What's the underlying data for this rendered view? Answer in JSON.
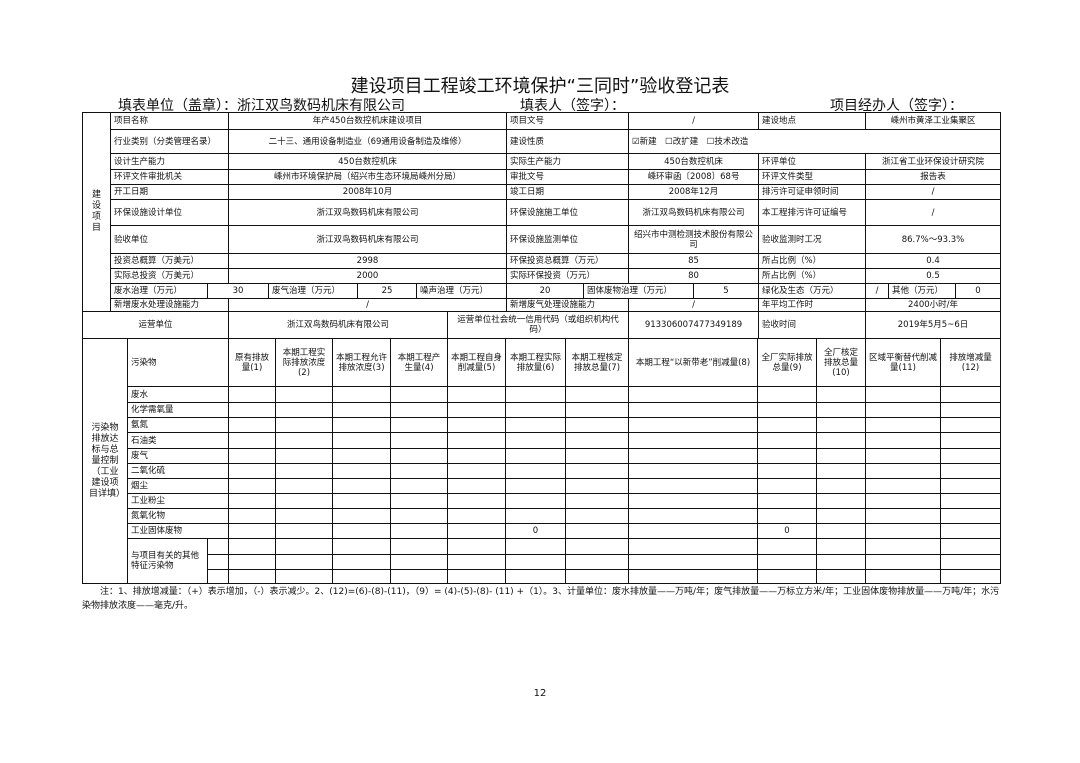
{
  "title": "建设项目工程竣工环境保护“三同时”验收登记表",
  "header": {
    "unit": "填表单位（盖章）：浙江双鸟数码机床有限公司",
    "filler": "填表人（签字）：",
    "manager": "项目经办人（签字）："
  },
  "project": {
    "section_label": "建设项目",
    "name_label": "项目名称",
    "name": "年产450台数控机床建设项目",
    "doc_no_label": "项目文号",
    "doc_no": "/",
    "location_label": "建设地点",
    "location": "嵊州市黄泽工业集聚区",
    "industry_label": "行业类别（分类管理名录）",
    "industry": "二十三、通用设备制造业（69通用设备制造及维修）",
    "nature_label": "建设性质",
    "nature": "☑新建　☐改扩建　☐技术改造",
    "design_capacity_label": "设计生产能力",
    "design_capacity": "450台数控机床",
    "actual_capacity_label": "实际生产能力",
    "actual_capacity": "450台数控机床",
    "eia_unit_label": "环评单位",
    "eia_unit": "浙江省工业环保设计研究院",
    "approval_authority_label": "环评文件审批机关",
    "approval_authority": "嵊州市环境保护局（绍兴市生态环境局嵊州分局）",
    "approval_no_label": "审批文号",
    "approval_no": "嵊环审函〔2008〕68号",
    "eia_doc_type_label": "环评文件类型",
    "eia_doc_type": "报告表",
    "start_date_label": "开工日期",
    "start_date": "2008年10月",
    "completion_date_label": "竣工日期",
    "completion_date": "2008年12月",
    "permit_time_label": "排污许可证申领时间",
    "permit_time": "/",
    "facility_design_label": "环保设施设计单位",
    "facility_design": "浙江双鸟数码机床有限公司",
    "facility_construction_label": "环保设施施工单位",
    "facility_construction": "浙江双鸟数码机床有限公司",
    "permit_no_label": "本工程排污许可证编号",
    "permit_no": "/",
    "acceptance_unit_label": "验收单位",
    "acceptance_unit": "浙江双鸟数码机床有限公司",
    "monitoring_unit_label": "环保设施监测单位",
    "monitoring_unit": "绍兴市中测检测技术股份有限公司",
    "monitoring_condition_label": "验收监测时工况",
    "monitoring_condition": "86.7%～93.3%",
    "invest_budget_label": "投资总概算（万美元）",
    "invest_budget": "2998",
    "env_invest_budget_label": "环保投资总概算（万元）",
    "env_invest_budget": "85",
    "ratio_label": "所占比例（%）",
    "ratio_budget": "0.4",
    "actual_invest_label": "实际总投资（万美元）",
    "actual_invest": "2000",
    "actual_env_invest_label": "实际环保投资（万元）",
    "actual_env_invest": "80",
    "ratio_actual": "0.5",
    "wastewater_label": "废水治理（万元）",
    "wastewater": "30",
    "waste_gas_label": "废气治理（万元）",
    "waste_gas": "25",
    "noise_label": "噪声治理（万元）",
    "noise": "20",
    "solid_label": "固体废物治理（万元）",
    "solid": "5",
    "greening_label": "绿化及生态（万元）",
    "greening": "/",
    "other_label": "其他（万元）",
    "other": "0",
    "new_ww_capacity_label": "新增废水处理设施能力",
    "new_ww_capacity": "/",
    "new_gas_capacity_label": "新增废气处理设施能力",
    "new_gas_capacity": "/",
    "annual_hours_label": "年平均工作时",
    "annual_hours": "2400小时/年"
  },
  "operator": {
    "label": "运营单位",
    "name": "浙江双鸟数码机床有限公司",
    "credit_code_label": "运营单位社会统一信用代码（或组织机构代码）",
    "credit_code": "913306007477349189",
    "acceptance_time_label": "验收时间",
    "acceptance_time": "2019年5月5~6日"
  },
  "pollutants": {
    "section_label": "污染物排放达标与总量控制（工业建设项目详填）",
    "header_label": "污染物",
    "columns": [
      "原有排放量(1)",
      "本期工程实际排放浓度(2)",
      "本期工程允许排放浓度(3)",
      "本期工程产生量(4)",
      "本期工程自身削减量(5)",
      "本期工程实际排放量(6)",
      "本期工程核定排放总量(7)",
      "本期工程“以新带老”削减量(8)",
      "全厂实际排放总量(9)",
      "全厂核定排放总量(10)",
      "区域平衡替代削减量(11)",
      "排放增减量(12)"
    ],
    "rows": [
      {
        "name": "废水",
        "values": [
          "",
          "",
          "",
          "",
          "",
          "",
          "",
          "",
          "",
          "",
          "",
          ""
        ]
      },
      {
        "name": "化学需氧量",
        "values": [
          "",
          "",
          "",
          "",
          "",
          "",
          "",
          "",
          "",
          "",
          "",
          ""
        ]
      },
      {
        "name": "氨氮",
        "values": [
          "",
          "",
          "",
          "",
          "",
          "",
          "",
          "",
          "",
          "",
          "",
          ""
        ]
      },
      {
        "name": "石油类",
        "values": [
          "",
          "",
          "",
          "",
          "",
          "",
          "",
          "",
          "",
          "",
          "",
          ""
        ]
      },
      {
        "name": "废气",
        "values": [
          "",
          "",
          "",
          "",
          "",
          "",
          "",
          "",
          "",
          "",
          "",
          ""
        ]
      },
      {
        "name": "二氧化硫",
        "values": [
          "",
          "",
          "",
          "",
          "",
          "",
          "",
          "",
          "",
          "",
          "",
          ""
        ]
      },
      {
        "name": "烟尘",
        "values": [
          "",
          "",
          "",
          "",
          "",
          "",
          "",
          "",
          "",
          "",
          "",
          ""
        ]
      },
      {
        "name": "工业粉尘",
        "values": [
          "",
          "",
          "",
          "",
          "",
          "",
          "",
          "",
          "",
          "",
          "",
          ""
        ]
      },
      {
        "name": "氮氧化物",
        "values": [
          "",
          "",
          "",
          "",
          "",
          "",
          "",
          "",
          "",
          "",
          "",
          ""
        ]
      },
      {
        "name": "工业固体废物",
        "values": [
          "",
          "",
          "",
          "",
          "",
          "0",
          "",
          "",
          "0",
          "",
          "",
          ""
        ]
      }
    ],
    "other_label": "与项目有关的其他特征污染物"
  },
  "note": "注：1、排放增减量：（+）表示增加，（-）表示减少。2、(12)=(6)-(8)-(11)，（9）= (4)-(5)-(8)- (11) +（1）。3、计量单位：废水排放量——万吨/年；废气排放量——万标立方米/年；工业固体废物排放量——万吨/年；水污染物排放浓度——毫克/升。",
  "page_number": "12"
}
